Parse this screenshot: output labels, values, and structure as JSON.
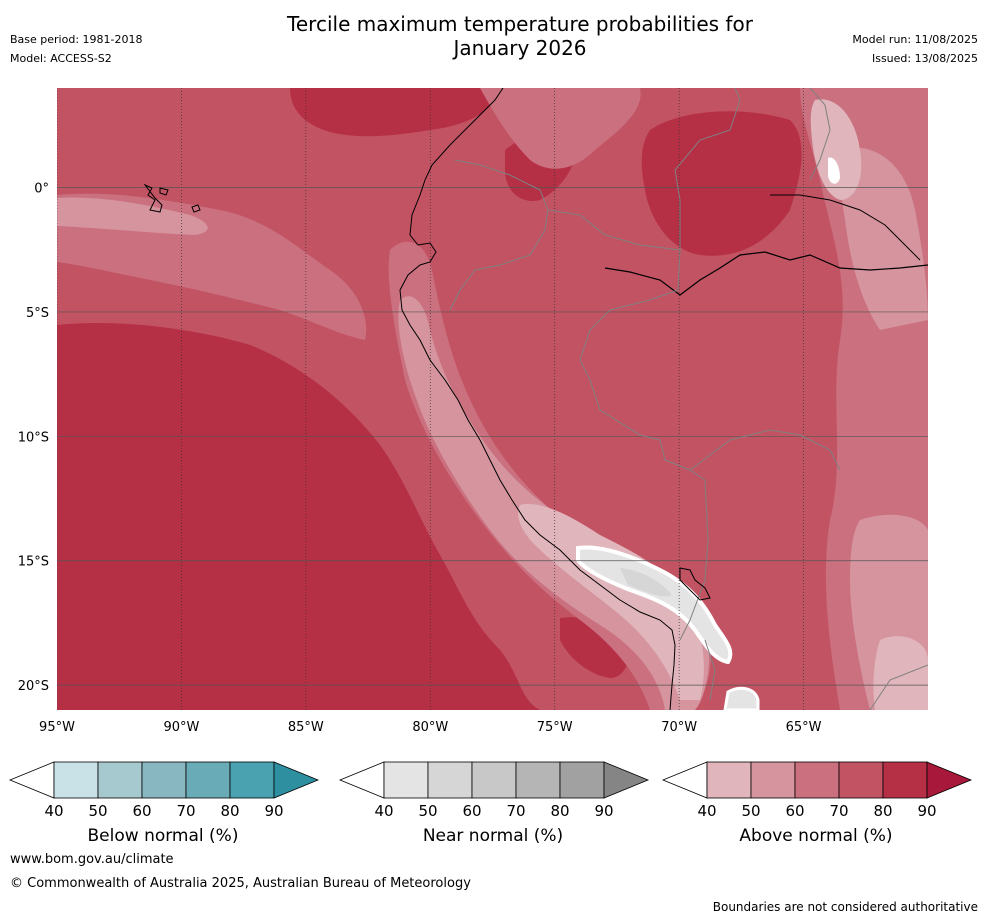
{
  "header": {
    "title_line1": "Tercile maximum temperature probabilities for",
    "title_line2": "January 2026",
    "base_period": "Base period: 1981-2018",
    "model": "Model: ACCESS-S2",
    "model_run": "Model run: 11/08/2025",
    "issued": "Issued: 13/08/2025"
  },
  "map": {
    "lon_range": [
      -95,
      -60
    ],
    "lat_range": [
      -21,
      4
    ],
    "lon_ticks": [
      {
        "value": -95,
        "label": "95°W"
      },
      {
        "value": -90,
        "label": "90°W"
      },
      {
        "value": -85,
        "label": "85°W"
      },
      {
        "value": -80,
        "label": "80°W"
      },
      {
        "value": -75,
        "label": "75°W"
      },
      {
        "value": -70,
        "label": "70°W"
      },
      {
        "value": -65,
        "label": "65°W"
      }
    ],
    "lat_ticks": [
      {
        "value": 0,
        "label": "0°"
      },
      {
        "value": -5,
        "label": "5°S"
      },
      {
        "value": -10,
        "label": "10°S"
      },
      {
        "value": -15,
        "label": "15°S"
      },
      {
        "value": -20,
        "label": "20°S"
      }
    ]
  },
  "legends": {
    "below": {
      "label": "Below normal (%)",
      "ticks": [
        "40",
        "50",
        "60",
        "70",
        "80",
        "90"
      ],
      "colors": [
        "#c9e2e7",
        "#a6c8cf",
        "#88b7c2",
        "#6aabb8",
        "#4aa1b0",
        "#2e8fa0"
      ]
    },
    "near": {
      "label": "Near normal (%)",
      "ticks": [
        "40",
        "50",
        "60",
        "70",
        "80",
        "90"
      ],
      "colors": [
        "#e4e4e4",
        "#d6d6d6",
        "#c8c8c8",
        "#b5b5b5",
        "#a1a1a1",
        "#858585"
      ]
    },
    "above": {
      "label": "Above normal (%)",
      "ticks": [
        "40",
        "50",
        "60",
        "70",
        "80",
        "90"
      ],
      "colors": [
        "#e0b5bb",
        "#d5949e",
        "#ca707f",
        "#c25363",
        "#b52f45",
        "#a8183a"
      ]
    }
  },
  "footer": {
    "website": "www.bom.gov.au/climate",
    "copyright": "© Commonwealth of Australia 2025, Australian Bureau of Meteorology",
    "note": "Boundaries are not considered authoritative"
  }
}
